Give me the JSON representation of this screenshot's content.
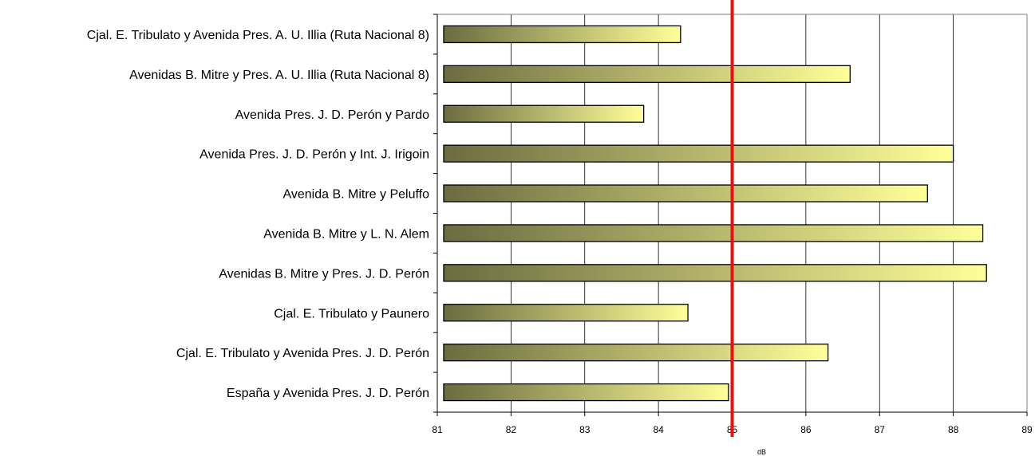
{
  "chart_data": {
    "type": "bar",
    "orientation": "horizontal",
    "title": "",
    "xlabel": "dB",
    "ylabel": "",
    "xlim": [
      81,
      89
    ],
    "x_ticks": [
      81,
      82,
      83,
      84,
      85,
      86,
      87,
      88,
      89
    ],
    "grid": "vertical",
    "legend": "none",
    "categories": [
      "Cjal. E. Tribulato y Avenida Pres. A. U. Illia (Ruta Nacional 8)",
      "Avenidas B. Mitre y Pres. A. U. Illia (Ruta Nacional 8)",
      "Avenida Pres. J. D. Perón y Pardo",
      "Avenida Pres. J. D. Perón y Int. J. Irigoin",
      "Avenida B. Mitre y Peluffo",
      "Avenida B. Mitre y L. N. Alem",
      "Avenidas B. Mitre y Pres. J. D. Perón",
      "Cjal. E. Tribulato y Paunero",
      "Cjal. E. Tribulato y Avenida Pres. J. D. Perón",
      "España y Avenida Pres. J. D. Perón"
    ],
    "values": [
      84.3,
      86.6,
      83.8,
      88.0,
      87.65,
      88.4,
      88.45,
      84.4,
      86.3,
      84.95
    ],
    "reference_line": {
      "value": 85,
      "color": "#e81010"
    },
    "colors": {
      "bar_dark": "#6b6b40",
      "bar_light": "#ffff99",
      "bar_stroke": "#000000",
      "grid": "#000000"
    }
  }
}
